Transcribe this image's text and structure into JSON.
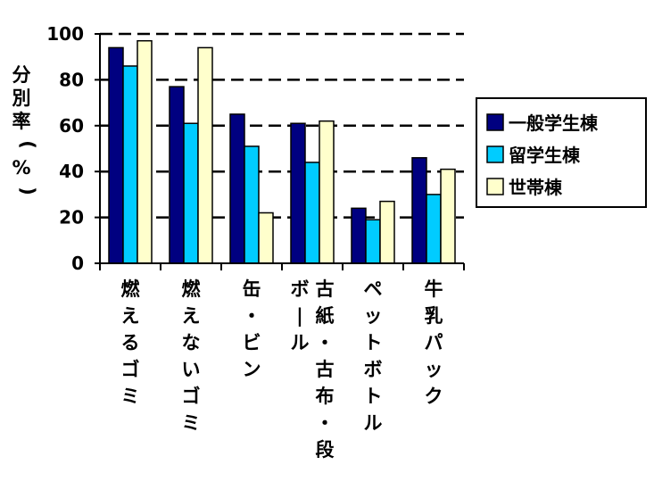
{
  "chart_data": {
    "type": "bar",
    "title": "",
    "ylabel": "分別率（%）",
    "xlabel": "",
    "ylim": [
      0,
      100
    ],
    "yticks": [
      0,
      20,
      40,
      60,
      80,
      100
    ],
    "grid": "horizontal-dashed",
    "legend_position": "right",
    "categories": [
      [
        "燃えるゴミ"
      ],
      [
        "燃えないゴミ"
      ],
      [
        "缶・ビン"
      ],
      [
        "古紙・古布・段",
        "ボール"
      ],
      [
        "ペットボトル"
      ],
      [
        "牛乳パック"
      ]
    ],
    "series": [
      {
        "name": "一般学生棟",
        "color": "#000080",
        "values": [
          94,
          77,
          65,
          61,
          24,
          46
        ]
      },
      {
        "name": "留学生棟",
        "color": "#00CCFF",
        "values": [
          86,
          61,
          51,
          44,
          19,
          30
        ]
      },
      {
        "name": "世帯棟",
        "color": "#FFFFCC",
        "values": [
          97,
          94,
          22,
          62,
          27,
          41
        ]
      }
    ]
  }
}
